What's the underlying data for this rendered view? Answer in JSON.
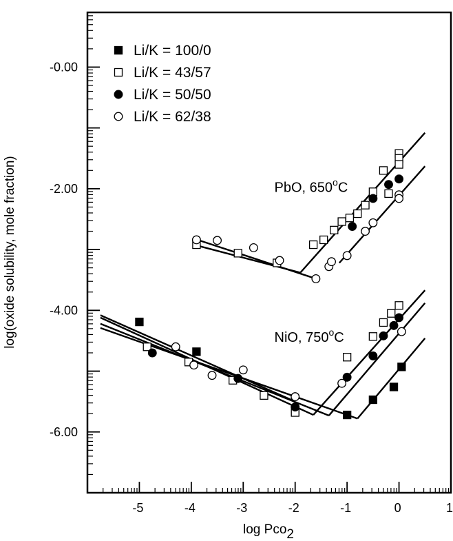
{
  "chart_data": {
    "type": "scatter",
    "xlabel": "log Pco",
    "xlabel_subscript": "2",
    "ylabel": "log(oxide solubility, mole fraction)",
    "xlim": [
      -6,
      1
    ],
    "ylim": [
      -7,
      0.9
    ],
    "x_ticks": [
      {
        "value": -5,
        "label": "-5"
      },
      {
        "value": -4,
        "label": "-4"
      },
      {
        "value": -3,
        "label": "-3"
      },
      {
        "value": -2,
        "label": "-2"
      },
      {
        "value": -1,
        "label": "-1"
      },
      {
        "value": 0,
        "label": "0"
      },
      {
        "value": 1,
        "label": "1"
      }
    ],
    "y_ticks": [
      {
        "value": 0,
        "label": "-0.00"
      },
      {
        "value": -2,
        "label": "-2.00"
      },
      {
        "value": -4,
        "label": "-4.00"
      },
      {
        "value": -6,
        "label": "-6.00"
      }
    ],
    "annotations": [
      {
        "text": "PbO, 650",
        "sup": "o",
        "after": "C",
        "x": -2.4,
        "y": -2.05
      },
      {
        "text": "NiO, 750",
        "sup": "o",
        "after": "C",
        "x": -2.4,
        "y": -4.52
      }
    ],
    "series": [
      {
        "name": "Li/K = 100/0",
        "marker": "square-filled",
        "points": [
          [
            -5.0,
            -4.19
          ],
          [
            -3.9,
            -4.68
          ],
          [
            -2.0,
            -5.66
          ],
          [
            -1.0,
            -5.72
          ],
          [
            -0.5,
            -5.47
          ],
          [
            -0.1,
            -5.26
          ],
          [
            0.05,
            -4.93
          ]
        ],
        "fit_lines": [
          [
            [
              -5.75,
              -4.29
            ],
            [
              -0.8,
              -5.78
            ]
          ],
          [
            [
              -0.8,
              -5.78
            ],
            [
              0.5,
              -4.46
            ]
          ]
        ]
      },
      {
        "name": "Li/K = 43/57",
        "marker": "square-open",
        "points": [
          [
            -3.9,
            -2.92
          ],
          [
            -3.1,
            -3.06
          ],
          [
            -2.35,
            -3.22
          ],
          [
            -1.65,
            -2.92
          ],
          [
            -1.45,
            -2.84
          ],
          [
            -1.25,
            -2.68
          ],
          [
            -1.1,
            -2.54
          ],
          [
            -0.95,
            -2.48
          ],
          [
            -0.8,
            -2.41
          ],
          [
            -0.65,
            -2.27
          ],
          [
            -0.5,
            -2.05
          ],
          [
            -0.3,
            -1.7
          ],
          [
            -0.2,
            -2.08
          ],
          [
            0.0,
            -1.42
          ],
          [
            0.0,
            -1.5
          ],
          [
            0.0,
            -1.6
          ],
          [
            -4.85,
            -4.6
          ],
          [
            -4.05,
            -4.85
          ],
          [
            -3.2,
            -5.15
          ],
          [
            -2.6,
            -5.4
          ],
          [
            -2.0,
            -5.68
          ],
          [
            -1.0,
            -4.77
          ],
          [
            -0.5,
            -4.43
          ],
          [
            -0.3,
            -4.2
          ],
          [
            -0.15,
            -4.05
          ],
          [
            0.0,
            -3.92
          ]
        ],
        "fit_lines": [
          [
            [
              -3.95,
              -2.92
            ],
            [
              -1.9,
              -3.38
            ]
          ],
          [
            [
              -1.9,
              -3.38
            ],
            [
              0.5,
              -1.08
            ]
          ],
          [
            [
              -5.75,
              -4.12
            ],
            [
              -1.65,
              -5.72
            ]
          ],
          [
            [
              -1.65,
              -5.72
            ],
            [
              0.5,
              -3.67
            ]
          ]
        ]
      },
      {
        "name": "Li/K = 50/50",
        "marker": "circle-filled",
        "points": [
          [
            -0.9,
            -2.62
          ],
          [
            -0.5,
            -2.16
          ],
          [
            -0.2,
            -1.93
          ],
          [
            0.0,
            -1.84
          ],
          [
            -4.75,
            -4.7
          ],
          [
            -3.1,
            -5.12
          ],
          [
            -2.0,
            -5.59
          ],
          [
            -1.0,
            -5.1
          ],
          [
            -0.5,
            -4.75
          ],
          [
            -0.3,
            -4.42
          ],
          [
            -0.1,
            -4.25
          ],
          [
            0.0,
            -4.12
          ]
        ],
        "fit_lines": [
          [
            [
              -5.75,
              -4.22
            ],
            [
              -1.35,
              -5.73
            ]
          ],
          [
            [
              -1.35,
              -5.73
            ],
            [
              0.5,
              -3.88
            ]
          ]
        ]
      },
      {
        "name": "Li/K = 62/38",
        "marker": "circle-open",
        "points": [
          [
            -3.9,
            -2.84
          ],
          [
            -3.5,
            -2.85
          ],
          [
            -2.8,
            -2.97
          ],
          [
            -2.3,
            -3.18
          ],
          [
            -1.6,
            -3.48
          ],
          [
            -1.35,
            -3.28
          ],
          [
            -1.3,
            -3.2
          ],
          [
            -1.0,
            -3.1
          ],
          [
            -0.5,
            -2.56
          ],
          [
            -0.65,
            -2.7
          ],
          [
            0.0,
            -2.1
          ],
          [
            0.0,
            -2.16
          ],
          [
            -4.3,
            -4.6
          ],
          [
            -3.95,
            -4.9
          ],
          [
            -3.6,
            -5.07
          ],
          [
            -3.0,
            -4.98
          ],
          [
            -2.0,
            -5.42
          ],
          [
            -1.1,
            -5.2
          ],
          [
            0.05,
            -4.35
          ]
        ],
        "fit_lines": [
          [
            [
              -3.95,
              -2.82
            ],
            [
              -1.6,
              -3.48
            ]
          ],
          [
            [
              -1.15,
              -3.22
            ],
            [
              0.5,
              -1.63
            ]
          ],
          [
            [
              -5.75,
              -4.08
            ],
            [
              -2.0,
              -5.5
            ]
          ]
        ]
      }
    ],
    "legend": {
      "position": "top-left"
    },
    "grid": false
  }
}
